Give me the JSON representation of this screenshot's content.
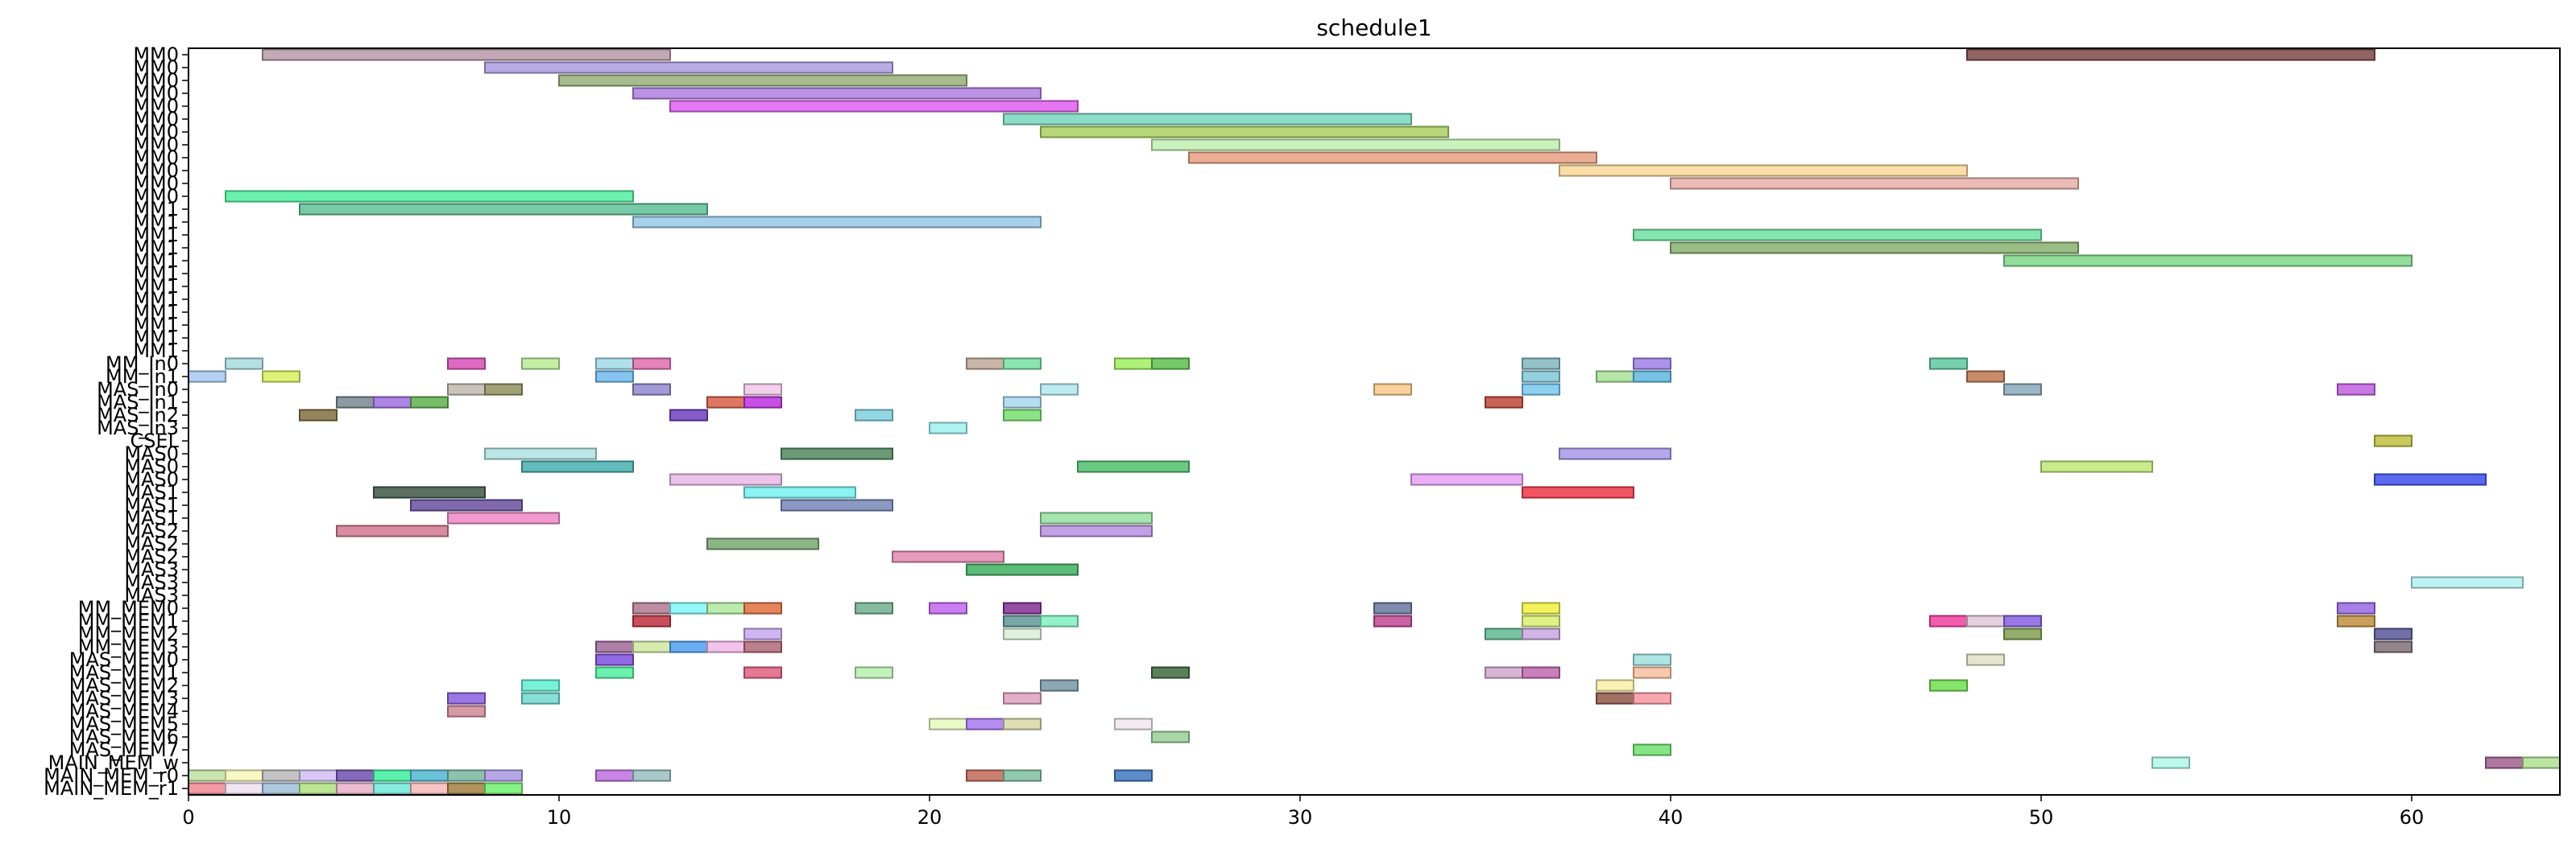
{
  "chart_data": {
    "type": "gantt",
    "title": "schedule1",
    "xlim": [
      0,
      64
    ],
    "x_ticks": [
      0,
      10,
      20,
      30,
      40,
      50,
      60
    ],
    "grid": false,
    "rows": [
      "MM0",
      "MM0",
      "MM0",
      "MM0",
      "MM0",
      "MM0",
      "MM0",
      "MM0",
      "MM0",
      "MM0",
      "MM0",
      "MM0",
      "MM1",
      "MM1",
      "MM1",
      "MM1",
      "MM1",
      "MM1",
      "MM1",
      "MM1",
      "MM1",
      "MM1",
      "MM1",
      "MM1",
      "MM_In0",
      "MM_In1",
      "MAS_In0",
      "MAS_In1",
      "MAS_In2",
      "MAS_In3",
      "CSEL",
      "MAS0",
      "MAS0",
      "MAS0",
      "MAS1",
      "MAS1",
      "MAS1",
      "MAS2",
      "MAS2",
      "MAS2",
      "MAS3",
      "MAS3",
      "MAS3",
      "MM_MEM0",
      "MM_MEM1",
      "MM_MEM2",
      "MM_MEM3",
      "MAS_MEM0",
      "MAS_MEM1",
      "MAS_MEM2",
      "MAS_MEM3",
      "MAS_MEM4",
      "MAS_MEM5",
      "MAS_MEM6",
      "MAS_MEM7",
      "MAIN_MEM_w",
      "MAIN_MEM_r0",
      "MAIN_MEM_r1"
    ],
    "tasks": [
      {
        "row": 0,
        "start": 2,
        "end": 13,
        "color": "#b89aa8"
      },
      {
        "row": 0,
        "start": 48,
        "end": 59,
        "color": "#7a4a48"
      },
      {
        "row": 1,
        "start": 8,
        "end": 19,
        "color": "#ad9ee0"
      },
      {
        "row": 2,
        "start": 10,
        "end": 21,
        "color": "#98b07a"
      },
      {
        "row": 3,
        "start": 12,
        "end": 23,
        "color": "#b07fe0"
      },
      {
        "row": 4,
        "start": 13,
        "end": 24,
        "color": "#e060f0"
      },
      {
        "row": 5,
        "start": 22,
        "end": 33,
        "color": "#78d8c0"
      },
      {
        "row": 6,
        "start": 23,
        "end": 34,
        "color": "#a8d060"
      },
      {
        "row": 7,
        "start": 26,
        "end": 37,
        "color": "#c0f0b0"
      },
      {
        "row": 8,
        "start": 27,
        "end": 38,
        "color": "#e8a080"
      },
      {
        "row": 9,
        "start": 37,
        "end": 48,
        "color": "#f8d898"
      },
      {
        "row": 10,
        "start": 40,
        "end": 51,
        "color": "#e8b0a8"
      },
      {
        "row": 11,
        "start": 1,
        "end": 12,
        "color": "#50f0a0"
      },
      {
        "row": 12,
        "start": 3,
        "end": 14,
        "color": "#60c098"
      },
      {
        "row": 13,
        "start": 12,
        "end": 23,
        "color": "#98c8e8"
      },
      {
        "row": 14,
        "start": 39,
        "end": 50,
        "color": "#70e0a0"
      },
      {
        "row": 15,
        "start": 40,
        "end": 51,
        "color": "#88b070"
      },
      {
        "row": 16,
        "start": 49,
        "end": 60,
        "color": "#80d888"
      },
      {
        "row": 24,
        "start": 1,
        "end": 2,
        "color": "#a8dce0"
      },
      {
        "row": 24,
        "start": 7,
        "end": 8,
        "color": "#d850b8"
      },
      {
        "row": 24,
        "start": 9,
        "end": 10,
        "color": "#b8ec98"
      },
      {
        "row": 24,
        "start": 11,
        "end": 12,
        "color": "#a0dce8"
      },
      {
        "row": 24,
        "start": 12,
        "end": 13,
        "color": "#e070b0"
      },
      {
        "row": 24,
        "start": 21,
        "end": 22,
        "color": "#c0a898"
      },
      {
        "row": 24,
        "start": 22,
        "end": 23,
        "color": "#78e0a0"
      },
      {
        "row": 24,
        "start": 25,
        "end": 26,
        "color": "#a0f060"
      },
      {
        "row": 24,
        "start": 26,
        "end": 27,
        "color": "#60c050"
      },
      {
        "row": 24,
        "start": 36,
        "end": 37,
        "color": "#80b8c0"
      },
      {
        "row": 24,
        "start": 39,
        "end": 40,
        "color": "#a080e8"
      },
      {
        "row": 24,
        "start": 47,
        "end": 48,
        "color": "#60c8a0"
      },
      {
        "row": 25,
        "start": 0,
        "end": 1,
        "color": "#a8c8f0"
      },
      {
        "row": 25,
        "start": 2,
        "end": 3,
        "color": "#d8f060"
      },
      {
        "row": 25,
        "start": 11,
        "end": 12,
        "color": "#70b8f0"
      },
      {
        "row": 25,
        "start": 36,
        "end": 37,
        "color": "#80c8d8"
      },
      {
        "row": 25,
        "start": 38,
        "end": 39,
        "color": "#a8e098"
      },
      {
        "row": 25,
        "start": 39,
        "end": 40,
        "color": "#60b8e0"
      },
      {
        "row": 25,
        "start": 48,
        "end": 49,
        "color": "#c07850"
      },
      {
        "row": 26,
        "start": 7,
        "end": 8,
        "color": "#c0b8b0"
      },
      {
        "row": 26,
        "start": 8,
        "end": 9,
        "color": "#909060"
      },
      {
        "row": 26,
        "start": 12,
        "end": 13,
        "color": "#9088d0"
      },
      {
        "row": 26,
        "start": 15,
        "end": 16,
        "color": "#f0c8e8"
      },
      {
        "row": 26,
        "start": 23,
        "end": 24,
        "color": "#b0e8f0"
      },
      {
        "row": 26,
        "start": 32,
        "end": 33,
        "color": "#f8c888"
      },
      {
        "row": 26,
        "start": 36,
        "end": 37,
        "color": "#78c8f0"
      },
      {
        "row": 26,
        "start": 49,
        "end": 50,
        "color": "#88a8b8"
      },
      {
        "row": 26,
        "start": 58,
        "end": 59,
        "color": "#c060e0"
      },
      {
        "row": 27,
        "start": 4,
        "end": 5,
        "color": "#788890"
      },
      {
        "row": 27,
        "start": 5,
        "end": 6,
        "color": "#a070e0"
      },
      {
        "row": 27,
        "start": 6,
        "end": 7,
        "color": "#60b050"
      },
      {
        "row": 27,
        "start": 14,
        "end": 15,
        "color": "#d86048"
      },
      {
        "row": 27,
        "start": 15,
        "end": 16,
        "color": "#c030e0"
      },
      {
        "row": 27,
        "start": 22,
        "end": 23,
        "color": "#a8d8f0"
      },
      {
        "row": 27,
        "start": 35,
        "end": 36,
        "color": "#c04838"
      },
      {
        "row": 28,
        "start": 3,
        "end": 4,
        "color": "#807040"
      },
      {
        "row": 28,
        "start": 13,
        "end": 14,
        "color": "#7040c0"
      },
      {
        "row": 28,
        "start": 18,
        "end": 19,
        "color": "#80d0e0"
      },
      {
        "row": 28,
        "start": 22,
        "end": 23,
        "color": "#78e070"
      },
      {
        "row": 29,
        "start": 20,
        "end": 21,
        "color": "#a0f0f0"
      },
      {
        "row": 30,
        "start": 59,
        "end": 60,
        "color": "#c0c040"
      },
      {
        "row": 31,
        "start": 8,
        "end": 11,
        "color": "#b0e0e0"
      },
      {
        "row": 31,
        "start": 16,
        "end": 19,
        "color": "#508860"
      },
      {
        "row": 31,
        "start": 37,
        "end": 40,
        "color": "#a898e8"
      },
      {
        "row": 32,
        "start": 9,
        "end": 12,
        "color": "#48b0b0"
      },
      {
        "row": 32,
        "start": 24,
        "end": 27,
        "color": "#50c070"
      },
      {
        "row": 32,
        "start": 50,
        "end": 53,
        "color": "#c0e878"
      },
      {
        "row": 33,
        "start": 13,
        "end": 16,
        "color": "#e8b8e8"
      },
      {
        "row": 33,
        "start": 33,
        "end": 36,
        "color": "#e8a0f8"
      },
      {
        "row": 33,
        "start": 59,
        "end": 62,
        "color": "#4050f0"
      },
      {
        "row": 34,
        "start": 5,
        "end": 8,
        "color": "#405848"
      },
      {
        "row": 34,
        "start": 15,
        "end": 18,
        "color": "#78f0f0"
      },
      {
        "row": 34,
        "start": 36,
        "end": 39,
        "color": "#f03848"
      },
      {
        "row": 35,
        "start": 6,
        "end": 9,
        "color": "#6850a0"
      },
      {
        "row": 35,
        "start": 16,
        "end": 19,
        "color": "#7888b8"
      },
      {
        "row": 36,
        "start": 7,
        "end": 10,
        "color": "#f088c8"
      },
      {
        "row": 36,
        "start": 23,
        "end": 26,
        "color": "#98e0a0"
      },
      {
        "row": 37,
        "start": 4,
        "end": 7,
        "color": "#d07890"
      },
      {
        "row": 37,
        "start": 23,
        "end": 26,
        "color": "#b890e0"
      },
      {
        "row": 38,
        "start": 14,
        "end": 17,
        "color": "#78a870"
      },
      {
        "row": 39,
        "start": 19,
        "end": 22,
        "color": "#e088b0"
      },
      {
        "row": 40,
        "start": 21,
        "end": 24,
        "color": "#40b060"
      },
      {
        "row": 41,
        "start": 60,
        "end": 63,
        "color": "#b0f0f0"
      },
      {
        "row": 43,
        "start": 12,
        "end": 13,
        "color": "#b07890"
      },
      {
        "row": 43,
        "start": 13,
        "end": 14,
        "color": "#80f8f8"
      },
      {
        "row": 43,
        "start": 14,
        "end": 15,
        "color": "#b0e8a0"
      },
      {
        "row": 43,
        "start": 15,
        "end": 16,
        "color": "#e07040"
      },
      {
        "row": 43,
        "start": 18,
        "end": 19,
        "color": "#70b090"
      },
      {
        "row": 43,
        "start": 20,
        "end": 21,
        "color": "#c068f0"
      },
      {
        "row": 43,
        "start": 22,
        "end": 23,
        "color": "#803090"
      },
      {
        "row": 43,
        "start": 32,
        "end": 33,
        "color": "#6878a0"
      },
      {
        "row": 43,
        "start": 36,
        "end": 37,
        "color": "#f0f040"
      },
      {
        "row": 43,
        "start": 58,
        "end": 59,
        "color": "#9868e0"
      },
      {
        "row": 44,
        "start": 12,
        "end": 13,
        "color": "#c03040"
      },
      {
        "row": 44,
        "start": 22,
        "end": 23,
        "color": "#609898"
      },
      {
        "row": 44,
        "start": 23,
        "end": 24,
        "color": "#80f0c0"
      },
      {
        "row": 44,
        "start": 32,
        "end": 33,
        "color": "#c04890"
      },
      {
        "row": 44,
        "start": 36,
        "end": 37,
        "color": "#d8f070"
      },
      {
        "row": 44,
        "start": 47,
        "end": 48,
        "color": "#f040a0"
      },
      {
        "row": 44,
        "start": 48,
        "end": 49,
        "color": "#e0c8d8"
      },
      {
        "row": 44,
        "start": 49,
        "end": 50,
        "color": "#8860e0"
      },
      {
        "row": 44,
        "start": 58,
        "end": 59,
        "color": "#c09040"
      },
      {
        "row": 45,
        "start": 15,
        "end": 16,
        "color": "#c8a8f0"
      },
      {
        "row": 45,
        "start": 22,
        "end": 23,
        "color": "#d8f0d8"
      },
      {
        "row": 45,
        "start": 35,
        "end": 36,
        "color": "#60b890"
      },
      {
        "row": 45,
        "start": 36,
        "end": 37,
        "color": "#c8a8e0"
      },
      {
        "row": 45,
        "start": 49,
        "end": 50,
        "color": "#80a050"
      },
      {
        "row": 45,
        "start": 59,
        "end": 60,
        "color": "#585898"
      },
      {
        "row": 46,
        "start": 11,
        "end": 12,
        "color": "#a06898"
      },
      {
        "row": 46,
        "start": 12,
        "end": 13,
        "color": "#d0e8a0"
      },
      {
        "row": 46,
        "start": 13,
        "end": 14,
        "color": "#50a0f0"
      },
      {
        "row": 46,
        "start": 14,
        "end": 15,
        "color": "#f0b8e8"
      },
      {
        "row": 46,
        "start": 15,
        "end": 16,
        "color": "#b06878"
      },
      {
        "row": 46,
        "start": 59,
        "end": 60,
        "color": "#807078"
      },
      {
        "row": 47,
        "start": 11,
        "end": 12,
        "color": "#8050e0"
      },
      {
        "row": 47,
        "start": 39,
        "end": 40,
        "color": "#a0e0e0"
      },
      {
        "row": 47,
        "start": 48,
        "end": 49,
        "color": "#e0e0c8"
      },
      {
        "row": 48,
        "start": 11,
        "end": 12,
        "color": "#50f0a0"
      },
      {
        "row": 48,
        "start": 15,
        "end": 16,
        "color": "#e06080"
      },
      {
        "row": 48,
        "start": 18,
        "end": 19,
        "color": "#b8f0b0"
      },
      {
        "row": 48,
        "start": 26,
        "end": 27,
        "color": "#406840"
      },
      {
        "row": 48,
        "start": 35,
        "end": 36,
        "color": "#d0a8d0"
      },
      {
        "row": 48,
        "start": 36,
        "end": 37,
        "color": "#c068b0"
      },
      {
        "row": 48,
        "start": 39,
        "end": 40,
        "color": "#f8c0a0"
      },
      {
        "row": 49,
        "start": 9,
        "end": 10,
        "color": "#60f0d0"
      },
      {
        "row": 49,
        "start": 23,
        "end": 24,
        "color": "#7898a8"
      },
      {
        "row": 49,
        "start": 38,
        "end": 39,
        "color": "#f8f0a8"
      },
      {
        "row": 49,
        "start": 47,
        "end": 48,
        "color": "#70e050"
      },
      {
        "row": 50,
        "start": 7,
        "end": 8,
        "color": "#8860e0"
      },
      {
        "row": 50,
        "start": 9,
        "end": 10,
        "color": "#70d8d0"
      },
      {
        "row": 50,
        "start": 22,
        "end": 23,
        "color": "#e0a0c0"
      },
      {
        "row": 50,
        "start": 38,
        "end": 39,
        "color": "#905848"
      },
      {
        "row": 50,
        "start": 39,
        "end": 40,
        "color": "#f898a0"
      },
      {
        "row": 51,
        "start": 7,
        "end": 8,
        "color": "#d08898"
      },
      {
        "row": 52,
        "start": 20,
        "end": 21,
        "color": "#e8f8c0"
      },
      {
        "row": 52,
        "start": 21,
        "end": 22,
        "color": "#a878f0"
      },
      {
        "row": 52,
        "start": 22,
        "end": 23,
        "color": "#d8d8a8"
      },
      {
        "row": 52,
        "start": 25,
        "end": 26,
        "color": "#f0e8f0"
      },
      {
        "row": 53,
        "start": 26,
        "end": 27,
        "color": "#98d098"
      },
      {
        "row": 54,
        "start": 39,
        "end": 40,
        "color": "#70e070"
      },
      {
        "row": 55,
        "start": 53,
        "end": 54,
        "color": "#b0f8e8"
      },
      {
        "row": 55,
        "start": 62,
        "end": 63,
        "color": "#a06090"
      },
      {
        "row": 55,
        "start": 63,
        "end": 64,
        "color": "#b0e090"
      },
      {
        "row": 56,
        "start": 0,
        "end": 1,
        "color": "#c0e0a0"
      },
      {
        "row": 56,
        "start": 1,
        "end": 2,
        "color": "#f8f8b8"
      },
      {
        "row": 56,
        "start": 2,
        "end": 3,
        "color": "#b8b8b8"
      },
      {
        "row": 56,
        "start": 3,
        "end": 4,
        "color": "#d0c0f0"
      },
      {
        "row": 56,
        "start": 4,
        "end": 5,
        "color": "#7050b0"
      },
      {
        "row": 56,
        "start": 5,
        "end": 6,
        "color": "#40f0a0"
      },
      {
        "row": 56,
        "start": 6,
        "end": 7,
        "color": "#50b8d0"
      },
      {
        "row": 56,
        "start": 7,
        "end": 8,
        "color": "#78b8a0"
      },
      {
        "row": 56,
        "start": 8,
        "end": 9,
        "color": "#a898e0"
      },
      {
        "row": 56,
        "start": 11,
        "end": 12,
        "color": "#c070e0"
      },
      {
        "row": 56,
        "start": 12,
        "end": 13,
        "color": "#98c0c0"
      },
      {
        "row": 56,
        "start": 21,
        "end": 22,
        "color": "#c06858"
      },
      {
        "row": 56,
        "start": 22,
        "end": 23,
        "color": "#80c0a0"
      },
      {
        "row": 56,
        "start": 25,
        "end": 26,
        "color": "#4078c0"
      },
      {
        "row": 57,
        "start": 0,
        "end": 1,
        "color": "#f08890"
      },
      {
        "row": 57,
        "start": 1,
        "end": 2,
        "color": "#f0e0f0"
      },
      {
        "row": 57,
        "start": 2,
        "end": 3,
        "color": "#a0c0d8"
      },
      {
        "row": 57,
        "start": 3,
        "end": 4,
        "color": "#b0e080"
      },
      {
        "row": 57,
        "start": 4,
        "end": 5,
        "color": "#e8b0c8"
      },
      {
        "row": 57,
        "start": 5,
        "end": 6,
        "color": "#70e8d8"
      },
      {
        "row": 57,
        "start": 6,
        "end": 7,
        "color": "#f8b8b8"
      },
      {
        "row": 57,
        "start": 7,
        "end": 8,
        "color": "#a08040"
      },
      {
        "row": 57,
        "start": 8,
        "end": 9,
        "color": "#70f070"
      }
    ]
  }
}
